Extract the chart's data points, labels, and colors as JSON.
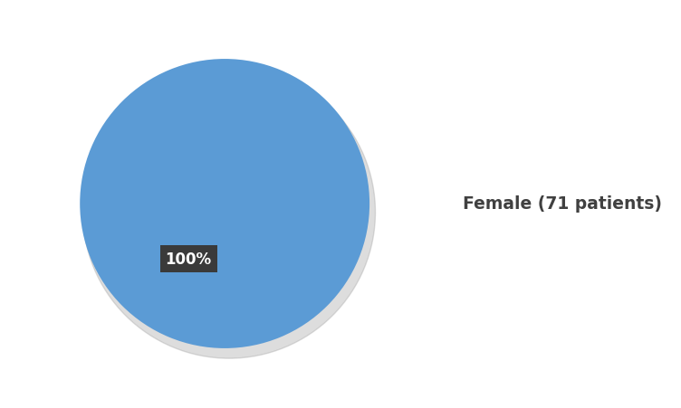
{
  "slices": [
    100
  ],
  "colors": [
    "#5B9BD5"
  ],
  "labels": [
    "Female (71 patients)"
  ],
  "pct_label": "100%",
  "pct_label_color": "white",
  "pct_label_bg": "#3A3A3A",
  "background_color": "#FFFFFF",
  "legend_fontsize": 13.5,
  "legend_text_color": "#404040",
  "pct_fontsize": 12,
  "shadow_color": "#AAAAAA",
  "shadow_alpha": 0.4
}
